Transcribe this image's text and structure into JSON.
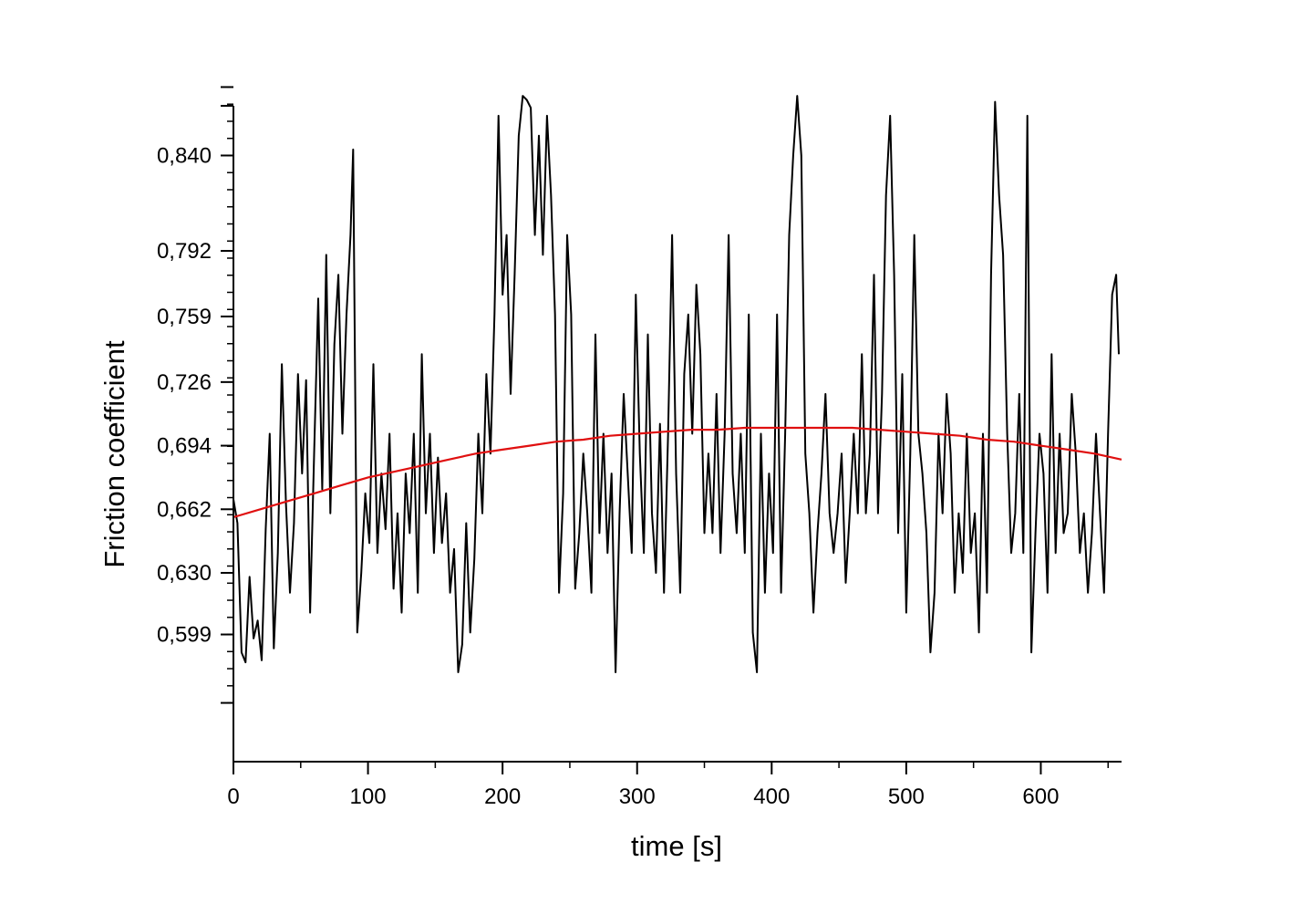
{
  "chart_data": {
    "type": "line",
    "xlabel": "time [s]",
    "ylabel": "Friction coefficient",
    "xlim": [
      0,
      660
    ],
    "ylim": [
      0.535,
      0.865
    ],
    "x_ticks": [
      0,
      100,
      200,
      300,
      400,
      500,
      600
    ],
    "x_tick_labels": [
      "0",
      "100",
      "200",
      "300",
      "400",
      "500",
      "600"
    ],
    "y_ticks": [
      0.599,
      0.63,
      0.662,
      0.694,
      0.726,
      0.759,
      0.792,
      0.84
    ],
    "y_tick_labels": [
      "0,599",
      "0,630",
      "0,662",
      "0,694",
      "0,726",
      "0,759",
      "0,792",
      "0,840"
    ],
    "grid": false,
    "legend": "none",
    "series": [
      {
        "color": "#000000",
        "style": "raw signal",
        "points": [
          [
            0,
            0.667
          ],
          [
            3,
            0.655
          ],
          [
            6,
            0.59
          ],
          [
            9,
            0.585
          ],
          [
            12,
            0.628
          ],
          [
            15,
            0.597
          ],
          [
            18,
            0.606
          ],
          [
            21,
            0.586
          ],
          [
            24,
            0.652
          ],
          [
            27,
            0.7
          ],
          [
            30,
            0.592
          ],
          [
            33,
            0.64
          ],
          [
            36,
            0.735
          ],
          [
            39,
            0.665
          ],
          [
            42,
            0.62
          ],
          [
            45,
            0.655
          ],
          [
            48,
            0.73
          ],
          [
            51,
            0.68
          ],
          [
            54,
            0.727
          ],
          [
            57,
            0.61
          ],
          [
            60,
            0.69
          ],
          [
            63,
            0.768
          ],
          [
            66,
            0.672
          ],
          [
            69,
            0.79
          ],
          [
            72,
            0.66
          ],
          [
            75,
            0.745
          ],
          [
            78,
            0.78
          ],
          [
            81,
            0.7
          ],
          [
            84,
            0.76
          ],
          [
            87,
            0.8
          ],
          [
            89,
            0.843
          ],
          [
            92,
            0.6
          ],
          [
            95,
            0.63
          ],
          [
            98,
            0.67
          ],
          [
            101,
            0.645
          ],
          [
            104,
            0.735
          ],
          [
            107,
            0.64
          ],
          [
            110,
            0.68
          ],
          [
            113,
            0.652
          ],
          [
            116,
            0.7
          ],
          [
            119,
            0.622
          ],
          [
            122,
            0.66
          ],
          [
            125,
            0.61
          ],
          [
            128,
            0.68
          ],
          [
            131,
            0.65
          ],
          [
            134,
            0.7
          ],
          [
            137,
            0.62
          ],
          [
            140,
            0.74
          ],
          [
            143,
            0.66
          ],
          [
            146,
            0.7
          ],
          [
            149,
            0.64
          ],
          [
            152,
            0.688
          ],
          [
            155,
            0.645
          ],
          [
            158,
            0.67
          ],
          [
            161,
            0.62
          ],
          [
            164,
            0.642
          ],
          [
            167,
            0.58
          ],
          [
            170,
            0.594
          ],
          [
            173,
            0.655
          ],
          [
            176,
            0.6
          ],
          [
            179,
            0.637
          ],
          [
            182,
            0.7
          ],
          [
            185,
            0.66
          ],
          [
            188,
            0.73
          ],
          [
            191,
            0.69
          ],
          [
            194,
            0.76
          ],
          [
            197,
            0.86
          ],
          [
            200,
            0.77
          ],
          [
            203,
            0.8
          ],
          [
            206,
            0.72
          ],
          [
            209,
            0.78
          ],
          [
            212,
            0.85
          ],
          [
            215,
            0.87
          ],
          [
            218,
            0.868
          ],
          [
            221,
            0.864
          ],
          [
            224,
            0.8
          ],
          [
            227,
            0.85
          ],
          [
            230,
            0.79
          ],
          [
            233,
            0.86
          ],
          [
            236,
            0.82
          ],
          [
            239,
            0.76
          ],
          [
            242,
            0.62
          ],
          [
            245,
            0.67
          ],
          [
            248,
            0.8
          ],
          [
            251,
            0.76
          ],
          [
            254,
            0.622
          ],
          [
            257,
            0.65
          ],
          [
            260,
            0.69
          ],
          [
            263,
            0.66
          ],
          [
            266,
            0.62
          ],
          [
            269,
            0.75
          ],
          [
            272,
            0.65
          ],
          [
            275,
            0.7
          ],
          [
            278,
            0.64
          ],
          [
            281,
            0.68
          ],
          [
            284,
            0.58
          ],
          [
            287,
            0.66
          ],
          [
            290,
            0.72
          ],
          [
            293,
            0.68
          ],
          [
            296,
            0.64
          ],
          [
            299,
            0.77
          ],
          [
            302,
            0.69
          ],
          [
            305,
            0.64
          ],
          [
            308,
            0.75
          ],
          [
            311,
            0.66
          ],
          [
            314,
            0.63
          ],
          [
            317,
            0.705
          ],
          [
            320,
            0.62
          ],
          [
            323,
            0.7
          ],
          [
            326,
            0.8
          ],
          [
            329,
            0.68
          ],
          [
            332,
            0.62
          ],
          [
            335,
            0.73
          ],
          [
            338,
            0.76
          ],
          [
            341,
            0.7
          ],
          [
            344,
            0.775
          ],
          [
            347,
            0.74
          ],
          [
            350,
            0.65
          ],
          [
            353,
            0.69
          ],
          [
            356,
            0.65
          ],
          [
            359,
            0.72
          ],
          [
            362,
            0.64
          ],
          [
            365,
            0.7
          ],
          [
            368,
            0.8
          ],
          [
            371,
            0.68
          ],
          [
            374,
            0.65
          ],
          [
            377,
            0.7
          ],
          [
            380,
            0.64
          ],
          [
            383,
            0.76
          ],
          [
            386,
            0.6
          ],
          [
            389,
            0.58
          ],
          [
            392,
            0.7
          ],
          [
            395,
            0.62
          ],
          [
            398,
            0.68
          ],
          [
            401,
            0.64
          ],
          [
            404,
            0.76
          ],
          [
            407,
            0.62
          ],
          [
            410,
            0.7
          ],
          [
            413,
            0.8
          ],
          [
            416,
            0.84
          ],
          [
            419,
            0.87
          ],
          [
            422,
            0.84
          ],
          [
            425,
            0.69
          ],
          [
            428,
            0.66
          ],
          [
            431,
            0.61
          ],
          [
            434,
            0.65
          ],
          [
            437,
            0.68
          ],
          [
            440,
            0.72
          ],
          [
            443,
            0.66
          ],
          [
            446,
            0.64
          ],
          [
            449,
            0.66
          ],
          [
            452,
            0.69
          ],
          [
            455,
            0.625
          ],
          [
            458,
            0.66
          ],
          [
            461,
            0.7
          ],
          [
            464,
            0.66
          ],
          [
            467,
            0.74
          ],
          [
            470,
            0.66
          ],
          [
            473,
            0.69
          ],
          [
            476,
            0.78
          ],
          [
            479,
            0.66
          ],
          [
            482,
            0.72
          ],
          [
            485,
            0.82
          ],
          [
            488,
            0.86
          ],
          [
            491,
            0.78
          ],
          [
            494,
            0.65
          ],
          [
            497,
            0.73
          ],
          [
            500,
            0.61
          ],
          [
            503,
            0.69
          ],
          [
            506,
            0.8
          ],
          [
            509,
            0.7
          ],
          [
            512,
            0.68
          ],
          [
            515,
            0.65
          ],
          [
            518,
            0.59
          ],
          [
            521,
            0.62
          ],
          [
            524,
            0.7
          ],
          [
            527,
            0.66
          ],
          [
            530,
            0.72
          ],
          [
            533,
            0.69
          ],
          [
            536,
            0.62
          ],
          [
            539,
            0.66
          ],
          [
            542,
            0.63
          ],
          [
            545,
            0.7
          ],
          [
            548,
            0.64
          ],
          [
            551,
            0.66
          ],
          [
            554,
            0.6
          ],
          [
            557,
            0.7
          ],
          [
            560,
            0.62
          ],
          [
            563,
            0.78
          ],
          [
            566,
            0.867
          ],
          [
            569,
            0.82
          ],
          [
            572,
            0.79
          ],
          [
            575,
            0.7
          ],
          [
            578,
            0.64
          ],
          [
            581,
            0.66
          ],
          [
            584,
            0.72
          ],
          [
            587,
            0.64
          ],
          [
            590,
            0.86
          ],
          [
            593,
            0.59
          ],
          [
            596,
            0.65
          ],
          [
            599,
            0.7
          ],
          [
            602,
            0.68
          ],
          [
            605,
            0.62
          ],
          [
            608,
            0.74
          ],
          [
            611,
            0.64
          ],
          [
            614,
            0.7
          ],
          [
            617,
            0.65
          ],
          [
            620,
            0.66
          ],
          [
            623,
            0.72
          ],
          [
            626,
            0.69
          ],
          [
            629,
            0.64
          ],
          [
            632,
            0.66
          ],
          [
            635,
            0.62
          ],
          [
            638,
            0.65
          ],
          [
            641,
            0.7
          ],
          [
            644,
            0.66
          ],
          [
            647,
            0.62
          ],
          [
            650,
            0.7
          ],
          [
            653,
            0.77
          ],
          [
            656,
            0.78
          ],
          [
            658,
            0.74
          ]
        ]
      },
      {
        "color": "#e01010",
        "style": "fit",
        "points": [
          [
            0,
            0.658
          ],
          [
            20,
            0.662
          ],
          [
            40,
            0.666
          ],
          [
            60,
            0.67
          ],
          [
            80,
            0.674
          ],
          [
            100,
            0.678
          ],
          [
            120,
            0.681
          ],
          [
            140,
            0.684
          ],
          [
            160,
            0.687
          ],
          [
            180,
            0.69
          ],
          [
            200,
            0.692
          ],
          [
            220,
            0.694
          ],
          [
            240,
            0.696
          ],
          [
            260,
            0.697
          ],
          [
            280,
            0.699
          ],
          [
            300,
            0.7
          ],
          [
            320,
            0.701
          ],
          [
            340,
            0.702
          ],
          [
            360,
            0.702
          ],
          [
            380,
            0.703
          ],
          [
            400,
            0.703
          ],
          [
            420,
            0.703
          ],
          [
            440,
            0.703
          ],
          [
            460,
            0.703
          ],
          [
            480,
            0.702
          ],
          [
            500,
            0.701
          ],
          [
            520,
            0.7
          ],
          [
            540,
            0.699
          ],
          [
            560,
            0.697
          ],
          [
            580,
            0.696
          ],
          [
            600,
            0.694
          ],
          [
            620,
            0.692
          ],
          [
            640,
            0.69
          ],
          [
            660,
            0.687
          ]
        ]
      }
    ]
  }
}
